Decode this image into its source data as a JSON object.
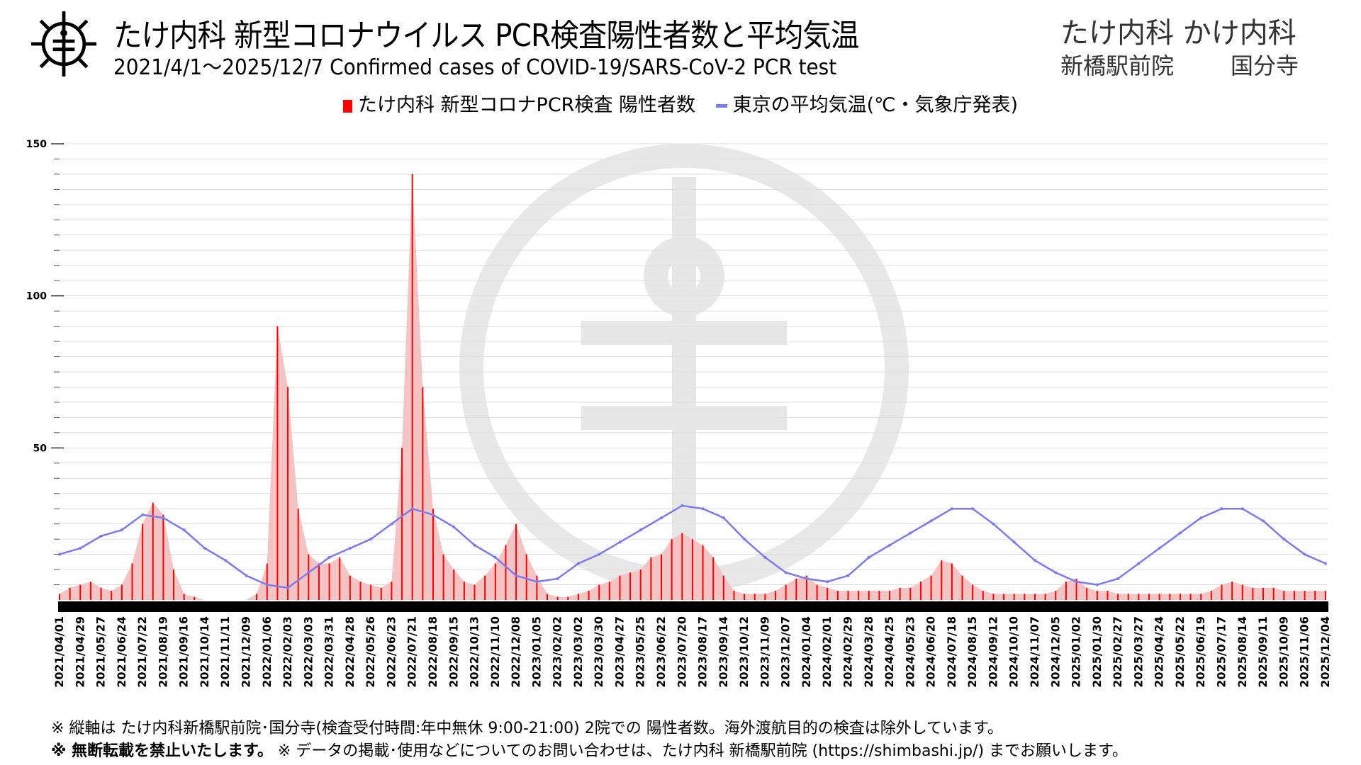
{
  "header": {
    "title": "たけ内科 新型コロナウイルス PCR検査陽性者数と平均気温",
    "subtitle": "2021/4/1～2025/12/7 Confirmed cases of COVID-19/SARS-CoV-2 PCR test",
    "clinic_brand": "たけ内科 かけ内科",
    "clinic_branch_1": "新橋駅前院",
    "clinic_branch_2": "国分寺",
    "logo_icon": "virus-logo-icon"
  },
  "legend": {
    "cases_label": "たけ内科 新型コロナPCR検査 陽性者数",
    "temp_label": "東京の平均気温(℃・気象庁発表)"
  },
  "colors": {
    "cases": "#ff0000",
    "cases_fill": "#f4c4c4",
    "temp": "#7b7bf0",
    "grid": "#dddddd"
  },
  "footer": {
    "note1": "※ 縦軸は たけ内科新橋駅前院･国分寺(検査受付時間:年中無休 9:00-21:00) 2院での 陽性者数。海外渡航目的の検査は除外しています。",
    "note2_bold": "※ 無断転載を禁止いたします。",
    "note2_rest": " ※ データの掲載･使用などについてのお問い合わせは、たけ内科 新橋駅前院 (https://shimbashi.jp/) までお願いします。"
  },
  "chart_data": {
    "type": "bar+line",
    "title": "たけ内科 新型コロナウイルス PCR検査陽性者数と平均気温",
    "xlabel": "",
    "ylabel": "",
    "ylim": [
      0,
      150
    ],
    "yticks": [
      50,
      100,
      150
    ],
    "grid": true,
    "legend_position": "top-center",
    "x_start": "2021/04/01",
    "x_end": "2025/12/07",
    "x_tick_labels": [
      "2021/04/01",
      "2021/04/29",
      "2021/05/27",
      "2021/06/24",
      "2021/07/22",
      "2021/08/19",
      "2021/09/16",
      "2021/10/14",
      "2021/11/11",
      "2021/12/09",
      "2022/01/06",
      "2022/02/03",
      "2022/03/03",
      "2022/03/31",
      "2022/04/28",
      "2022/05/26",
      "2022/06/23",
      "2022/07/21",
      "2022/08/18",
      "2022/09/15",
      "2022/10/13",
      "2022/11/10",
      "2022/12/08",
      "2023/01/05",
      "2023/02/02",
      "2023/03/02",
      "2023/03/30",
      "2023/04/27",
      "2023/05/25",
      "2023/06/22",
      "2023/07/20",
      "2023/08/17",
      "2023/09/14",
      "2023/10/12",
      "2023/11/09",
      "2023/12/07",
      "2024/01/04",
      "2024/02/01",
      "2024/02/29",
      "2024/03/28",
      "2024/04/25",
      "2024/05/23",
      "2024/06/20",
      "2024/07/18",
      "2024/08/15",
      "2024/09/12",
      "2024/10/10",
      "2024/11/07",
      "2024/12/05",
      "2025/01/02",
      "2025/01/30",
      "2025/02/27",
      "2025/03/27",
      "2025/04/24",
      "2025/05/22",
      "2025/06/19",
      "2025/07/17",
      "2025/08/14",
      "2025/09/11",
      "2025/10/09",
      "2025/11/06",
      "2025/12/04"
    ],
    "series": [
      {
        "name": "たけ内科 新型コロナPCR検査 陽性者数",
        "type": "bar",
        "interval_days": 14,
        "values": [
          2,
          4,
          5,
          6,
          4,
          3,
          5,
          12,
          25,
          32,
          28,
          10,
          2,
          1,
          0,
          0,
          0,
          0,
          0,
          2,
          12,
          90,
          70,
          30,
          15,
          12,
          12,
          14,
          8,
          6,
          5,
          4,
          6,
          50,
          140,
          70,
          30,
          15,
          10,
          6,
          5,
          8,
          12,
          18,
          25,
          15,
          8,
          2,
          1,
          1,
          2,
          3,
          5,
          6,
          8,
          9,
          10,
          14,
          15,
          20,
          22,
          20,
          18,
          14,
          8,
          3,
          2,
          2,
          2,
          3,
          5,
          7,
          8,
          5,
          4,
          3,
          3,
          3,
          3,
          3,
          3,
          4,
          4,
          6,
          8,
          13,
          12,
          8,
          5,
          3,
          2,
          2,
          2,
          2,
          2,
          2,
          3,
          6,
          7,
          4,
          3,
          3,
          2,
          2,
          2,
          2,
          2,
          2,
          2,
          2,
          2,
          3,
          5,
          6,
          5,
          4,
          4,
          4,
          3,
          3,
          3,
          3,
          3
        ]
      },
      {
        "name": "東京の平均気温(℃・気象庁発表)",
        "type": "line",
        "interval_days": 28,
        "values": [
          15,
          17,
          21,
          23,
          28,
          27,
          23,
          17,
          13,
          8,
          5,
          4,
          9,
          14,
          17,
          20,
          25,
          30,
          28,
          24,
          18,
          14,
          8,
          6,
          7,
          12,
          15,
          19,
          23,
          27,
          31,
          30,
          27,
          20,
          14,
          9,
          7,
          6,
          8,
          14,
          18,
          22,
          26,
          30,
          30,
          25,
          19,
          13,
          9,
          6,
          5,
          7,
          12,
          17,
          22,
          27,
          30,
          30,
          26,
          20,
          15,
          12
        ]
      }
    ]
  }
}
